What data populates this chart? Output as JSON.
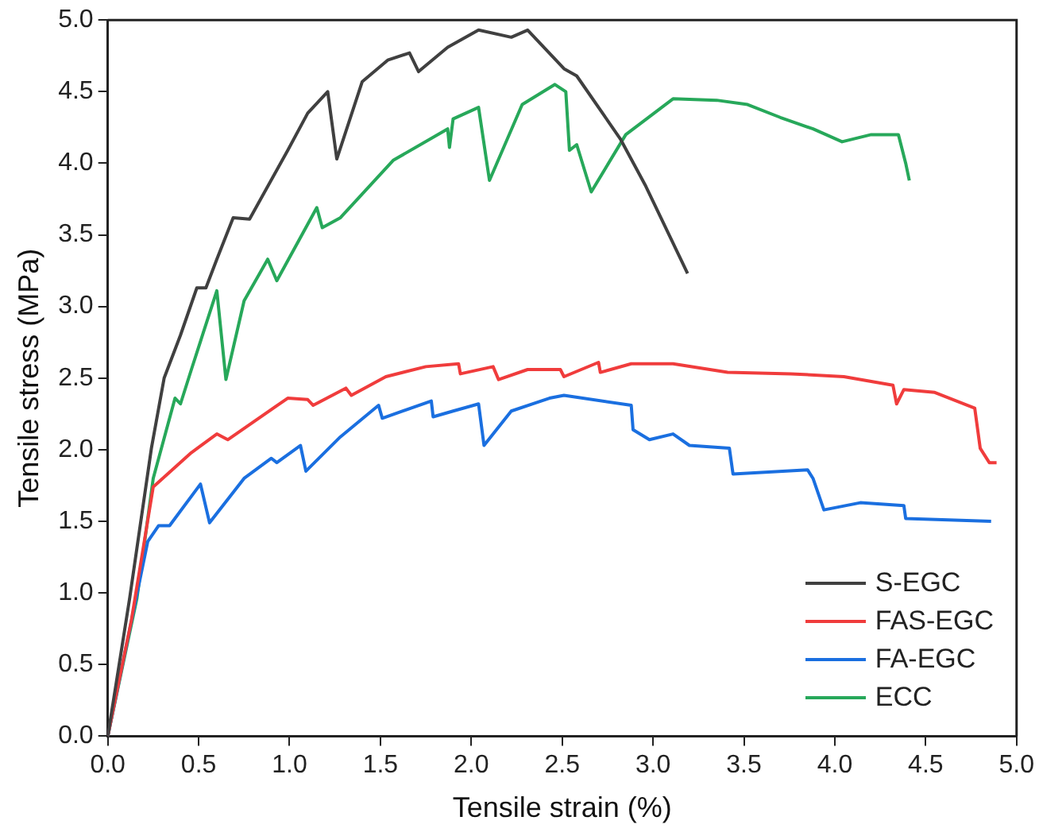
{
  "chart_data": {
    "type": "line",
    "xlabel": "Tensile strain (%)",
    "ylabel": "Tensile stress (MPa)",
    "legend": "bottom right",
    "grid": false,
    "marker": "none",
    "line_style": "solid",
    "xlim": [
      0,
      5
    ],
    "ylim": [
      0,
      5
    ],
    "xticks": [
      {
        "value": 0,
        "label": "0.0"
      },
      {
        "value": 0.5,
        "label": "0.5"
      },
      {
        "value": 1,
        "label": "1.0"
      },
      {
        "value": 1.5,
        "label": "1.5"
      },
      {
        "value": 2,
        "label": "2.0"
      },
      {
        "value": 2.5,
        "label": "2.5"
      },
      {
        "value": 3,
        "label": "3.0"
      },
      {
        "value": 3.5,
        "label": "3.5"
      },
      {
        "value": 4,
        "label": "4.0"
      },
      {
        "value": 4.5,
        "label": "4.5"
      },
      {
        "value": 5,
        "label": "5.0"
      }
    ],
    "yticks": [
      {
        "value": 0,
        "label": "0.0"
      },
      {
        "value": 0.5,
        "label": "0.5"
      },
      {
        "value": 1,
        "label": "1.0"
      },
      {
        "value": 1.5,
        "label": "1.5"
      },
      {
        "value": 2,
        "label": "2.0"
      },
      {
        "value": 2.5,
        "label": "2.5"
      },
      {
        "value": 3,
        "label": "3.0"
      },
      {
        "value": 3.5,
        "label": "3.5"
      },
      {
        "value": 4,
        "label": "4.0"
      },
      {
        "value": 4.5,
        "label": "4.5"
      },
      {
        "value": 5,
        "label": "5.0"
      }
    ],
    "series": [
      {
        "name": "S-EGC",
        "color": "#404040",
        "x": [
          0,
          0.12,
          0.24,
          0.31,
          0.4,
          0.49,
          0.54,
          0.6,
          0.69,
          0.78,
          0.99,
          1.1,
          1.21,
          1.26,
          1.4,
          1.54,
          1.66,
          1.71,
          1.87,
          2.04,
          2.22,
          2.31,
          2.51,
          2.58,
          2.82,
          2.96,
          3.19
        ],
        "values": [
          0,
          0.96,
          2.01,
          2.5,
          2.8,
          3.13,
          3.13,
          3.33,
          3.62,
          3.61,
          4.09,
          4.35,
          4.5,
          4.03,
          4.57,
          4.72,
          4.77,
          4.64,
          4.81,
          4.93,
          4.88,
          4.93,
          4.66,
          4.61,
          4.17,
          3.84,
          3.23
        ]
      },
      {
        "name": "FAS-EGC",
        "color": "#f03c3c",
        "x": [
          0,
          0.13,
          0.25,
          0.46,
          0.6,
          0.66,
          0.99,
          1.1,
          1.13,
          1.31,
          1.34,
          1.53,
          1.75,
          1.93,
          1.94,
          2.12,
          2.15,
          2.31,
          2.49,
          2.51,
          2.7,
          2.71,
          2.88,
          3.11,
          3.41,
          3.76,
          4.05,
          4.32,
          4.34,
          4.38,
          4.55,
          4.77,
          4.8,
          4.85,
          4.89
        ],
        "values": [
          0,
          0.81,
          1.74,
          1.98,
          2.11,
          2.07,
          2.36,
          2.35,
          2.31,
          2.43,
          2.38,
          2.51,
          2.58,
          2.6,
          2.53,
          2.58,
          2.49,
          2.56,
          2.56,
          2.51,
          2.61,
          2.54,
          2.6,
          2.6,
          2.54,
          2.53,
          2.51,
          2.45,
          2.32,
          2.42,
          2.4,
          2.29,
          2.01,
          1.91,
          1.91
        ]
      },
      {
        "name": "FA-EGC",
        "color": "#1a6fe0",
        "x": [
          0,
          0.22,
          0.28,
          0.34,
          0.51,
          0.56,
          0.75,
          0.9,
          0.93,
          1.06,
          1.09,
          1.28,
          1.49,
          1.51,
          1.78,
          1.79,
          1.9,
          2.04,
          2.07,
          2.22,
          2.43,
          2.51,
          2.88,
          2.89,
          2.98,
          3.11,
          3.2,
          3.42,
          3.44,
          3.85,
          3.88,
          3.94,
          4.14,
          4.38,
          4.39,
          4.86
        ],
        "values": [
          0,
          1.36,
          1.47,
          1.47,
          1.76,
          1.49,
          1.8,
          1.94,
          1.91,
          2.03,
          1.85,
          2.09,
          2.31,
          2.22,
          2.34,
          2.23,
          2.27,
          2.32,
          2.03,
          2.27,
          2.36,
          2.38,
          2.31,
          2.14,
          2.07,
          2.11,
          2.03,
          2.01,
          1.83,
          1.86,
          1.8,
          1.58,
          1.63,
          1.61,
          1.52,
          1.5
        ]
      },
      {
        "name": "ECC",
        "color": "#27a85a",
        "x": [
          0,
          0.16,
          0.25,
          0.37,
          0.4,
          0.46,
          0.6,
          0.65,
          0.75,
          0.88,
          0.93,
          1.15,
          1.18,
          1.28,
          1.57,
          1.87,
          1.88,
          1.9,
          2.04,
          2.1,
          2.28,
          2.46,
          2.52,
          2.54,
          2.58,
          2.66,
          2.85,
          3.11,
          3.35,
          3.52,
          3.7,
          3.88,
          4.04,
          4.2,
          4.35,
          4.39,
          4.41
        ],
        "values": [
          0,
          0.96,
          1.8,
          2.36,
          2.32,
          2.56,
          3.11,
          2.49,
          3.04,
          3.33,
          3.18,
          3.69,
          3.55,
          3.62,
          4.02,
          4.24,
          4.11,
          4.31,
          4.39,
          3.88,
          4.41,
          4.55,
          4.5,
          4.09,
          4.13,
          3.8,
          4.2,
          4.45,
          4.44,
          4.41,
          4.32,
          4.24,
          4.15,
          4.2,
          4.2,
          4.0,
          3.88
        ]
      }
    ]
  }
}
